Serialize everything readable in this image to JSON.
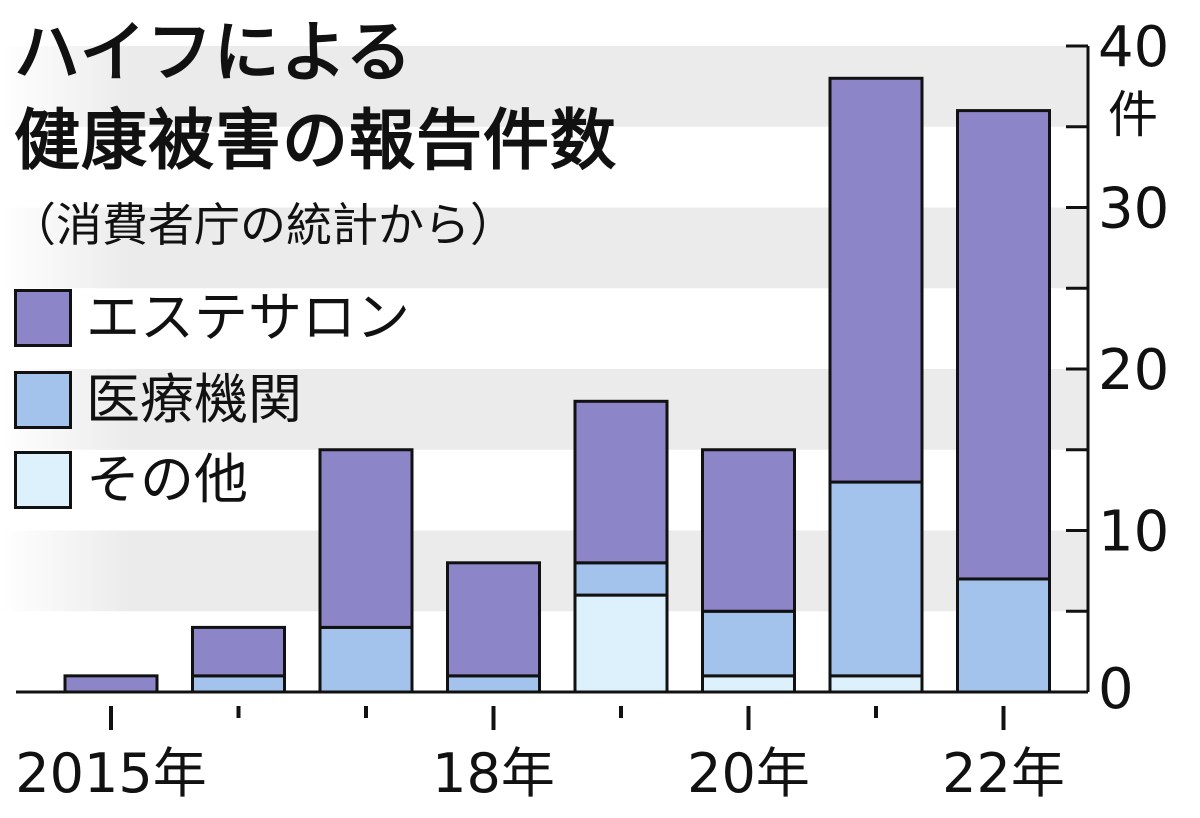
{
  "title_line1": "ハイフによる",
  "title_line2": "健康被害の報告件数",
  "subtitle": "（消費者庁の統計から）",
  "colors": {
    "esthetic": "#8c85c8",
    "medical": "#a4c3ec",
    "other": "#ddf1fc",
    "band": "#ebebeb"
  },
  "legend": [
    {
      "label": "エステサロン",
      "color": "#8c85c8"
    },
    {
      "label": "医療機関",
      "color": "#a4c3ec"
    },
    {
      "label": "その他",
      "color": "#ddf1fc"
    }
  ],
  "chart_data": {
    "type": "bar",
    "stacked": true,
    "categories": [
      "2015",
      "2016",
      "2017",
      "2018",
      "2019",
      "2020",
      "2021",
      "2022"
    ],
    "x_tick_labels": [
      "2015年",
      "",
      "",
      "18年",
      "",
      "20年",
      "",
      "22年"
    ],
    "series": [
      {
        "name": "その他",
        "values": [
          0,
          0,
          0,
          0,
          6,
          1,
          1,
          0
        ]
      },
      {
        "name": "医療機関",
        "values": [
          0,
          1,
          4,
          1,
          2,
          4,
          12,
          7
        ]
      },
      {
        "name": "エステサロン",
        "values": [
          1,
          3,
          11,
          7,
          10,
          10,
          25,
          29
        ]
      }
    ],
    "y_ticks": [
      0,
      10,
      20,
      30,
      40
    ],
    "y_unit": "件",
    "ylim": [
      0,
      40
    ],
    "y_axis_position": "right",
    "grid": "alternating horizontal bands",
    "legend_position": "top-left"
  }
}
